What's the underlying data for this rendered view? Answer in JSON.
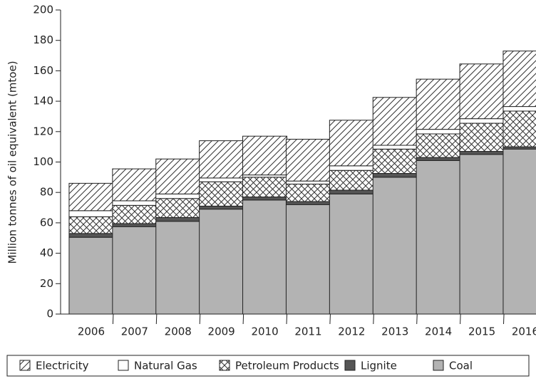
{
  "chart_data": {
    "type": "stacked_bar",
    "y_label": "Million tonnes of oil equivalent (mtoe)",
    "categories": [
      "2006",
      "2007",
      "2008",
      "2009",
      "2010",
      "2011",
      "2012",
      "2013",
      "2014",
      "2015",
      "2016"
    ],
    "series": [
      {
        "name": "Coal",
        "color": "#b3b3b3",
        "pattern": "solid",
        "values": [
          50.5,
          57.5,
          61,
          69,
          75,
          72,
          79,
          90,
          101,
          105,
          108.5
        ]
      },
      {
        "name": "Lignite",
        "color": "#555555",
        "pattern": "solid",
        "values": [
          2.5,
          2,
          2.5,
          2,
          2,
          2,
          2.5,
          2.5,
          2,
          2,
          1.5
        ]
      },
      {
        "name": "Petroleum Products",
        "color": "#ffffff",
        "pattern": "cross",
        "values": [
          11,
          12,
          12.5,
          16,
          13,
          11.5,
          13,
          16,
          15.5,
          18.5,
          23.5
        ]
      },
      {
        "name": "Natural Gas",
        "color": "#ffffff",
        "pattern": "solid",
        "values": [
          4,
          3,
          3,
          2.5,
          1.5,
          2,
          3,
          2.5,
          3,
          3,
          3
        ]
      },
      {
        "name": "Electricity",
        "color": "#ffffff",
        "pattern": "diagonal",
        "values": [
          18,
          21,
          23,
          24.5,
          25.5,
          27.5,
          30,
          31.5,
          33,
          36,
          36.5
        ]
      }
    ],
    "ylim": [
      0,
      200
    ],
    "yticks": [
      0,
      20,
      40,
      60,
      80,
      100,
      120,
      140,
      160,
      180,
      200
    ]
  }
}
